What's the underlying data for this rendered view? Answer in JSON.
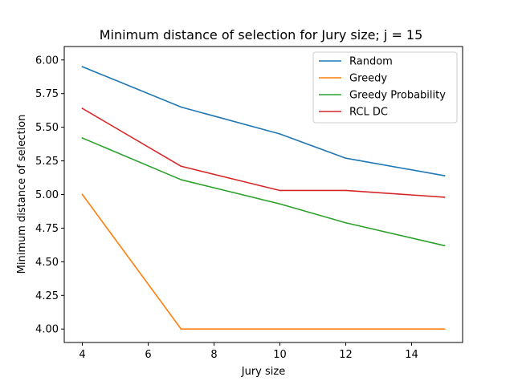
{
  "chart_data": {
    "type": "line",
    "title": "Minimum distance of selection for Jury size; j = 15",
    "xlabel": "Jury size",
    "ylabel": "Minimum distance of selection",
    "x": [
      4,
      7,
      10,
      12,
      15
    ],
    "xlim": [
      3.45,
      15.55
    ],
    "ylim": [
      3.9,
      6.1
    ],
    "xticks": [
      4,
      6,
      8,
      10,
      12,
      14
    ],
    "yticks": [
      4.0,
      4.25,
      4.5,
      4.75,
      5.0,
      5.25,
      5.5,
      5.75,
      6.0
    ],
    "xtick_labels": [
      "4",
      "6",
      "8",
      "10",
      "12",
      "14"
    ],
    "ytick_labels": [
      "4.00",
      "4.25",
      "4.50",
      "4.75",
      "5.00",
      "5.25",
      "5.50",
      "5.75",
      "6.00"
    ],
    "grid": false,
    "legend_position": "top-right",
    "series": [
      {
        "name": "Random",
        "color": "#1f77b4",
        "values": [
          5.95,
          5.65,
          5.45,
          5.27,
          5.14
        ]
      },
      {
        "name": "Greedy",
        "color": "#ff7f0e",
        "values": [
          5.0,
          4.0,
          4.0,
          4.0,
          4.0
        ]
      },
      {
        "name": "Greedy Probability",
        "color": "#2ca02c",
        "values": [
          5.42,
          5.11,
          4.93,
          4.79,
          4.62
        ]
      },
      {
        "name": "RCL DC",
        "color": "#d62728",
        "values": [
          5.64,
          5.21,
          5.03,
          5.03,
          4.98
        ]
      }
    ]
  }
}
